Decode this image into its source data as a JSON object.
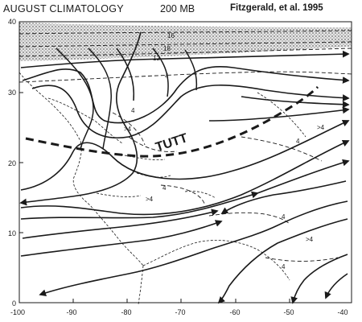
{
  "header": {
    "title": "AUGUST CLIMATOLOGY",
    "level": "200 MB",
    "credit": "Fitzgerald, et al.  1995"
  },
  "map": {
    "y_ticks": [
      "40",
      "30",
      "20",
      "10",
      "0"
    ],
    "x_ticks": [
      "-100",
      "-90",
      "-80",
      "-70",
      "-60",
      "-50",
      "-40"
    ],
    "trough_label": "TUTT",
    "isotach_labels": [
      "16",
      "18",
      "12",
      "4",
      "4",
      ">4",
      "4",
      ">4",
      "4",
      ">4",
      "4",
      ">4",
      "4"
    ],
    "colors": {
      "ink": "#1a1a1a",
      "stipple": "#9a9a9a"
    }
  }
}
